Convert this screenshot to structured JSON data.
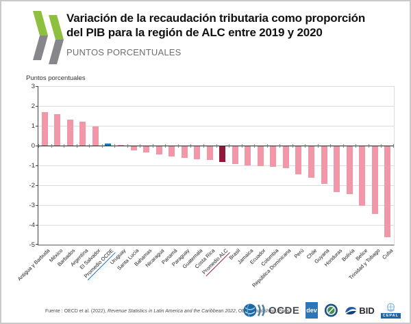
{
  "header": {
    "title_line1": "Variación de la recaudación tributaria como proporción",
    "title_line2": "del PIB para la región de ALC entre 2019 y 2020",
    "subtitle": "PUNTOS PORCENTUALES"
  },
  "chart_data": {
    "type": "bar",
    "title": "Variación de la recaudación tributaria como proporción del PIB para la región de ALC entre 2019 y 2020",
    "ylabel": "Puntos porcentuales",
    "ylim": [
      -5,
      3
    ],
    "yticks": [
      3,
      2,
      1,
      0,
      -1,
      -2,
      -3,
      -4,
      -5
    ],
    "grid": "horizontal",
    "legend": "none",
    "categories": [
      "Antigua y Barbuda",
      "México",
      "Barbados",
      "Argentina",
      "El Salvador",
      "Promedio OCDE",
      "Uruguay",
      "Santa Lucía",
      "Bahamas",
      "Nicaragua",
      "Panamá",
      "Paraguay",
      "Guatemala",
      "Costa Rica",
      "Promedio ALC",
      "Brasil",
      "Jamaica",
      "Ecuador",
      "Colombia",
      "República Dominicana",
      "Perú",
      "Chile",
      "Guyana",
      "Honduras",
      "Bolivia",
      "Belice",
      "Trinidad y Tobago",
      "Cuba"
    ],
    "values": [
      1.7,
      1.6,
      1.3,
      1.2,
      0.95,
      0.1,
      0.05,
      -0.2,
      -0.3,
      -0.4,
      -0.5,
      -0.6,
      -0.65,
      -0.7,
      -0.8,
      -0.9,
      -0.95,
      -1.0,
      -1.05,
      -1.1,
      -1.4,
      -1.6,
      -1.9,
      -2.3,
      -2.4,
      -3.0,
      -3.4,
      -4.6
    ],
    "colors": {
      "default_bar": "#f297a7",
      "oecd_average_bar": "#1c77b5",
      "alc_average_bar": "#8e1a38"
    },
    "highlighted": {
      "Promedio OCDE": "oecd_average_bar",
      "Promedio ALC": "alc_average_bar"
    }
  },
  "footer": {
    "source_prefix": "Fuente : OECD et al. (2022), ",
    "source_title": "Revenue Statistics in Latin America and the Caribbean 2022",
    "source_suffix": ", OECD Publishing, Paris",
    "logos": {
      "ocde_label": "OCDE",
      "dev_label": "dev",
      "bid_label": "BID",
      "cepal_label": "CEPAL"
    }
  },
  "brand_colors": {
    "logo_green": "#8fbf3f",
    "logo_gray": "#87878b"
  }
}
